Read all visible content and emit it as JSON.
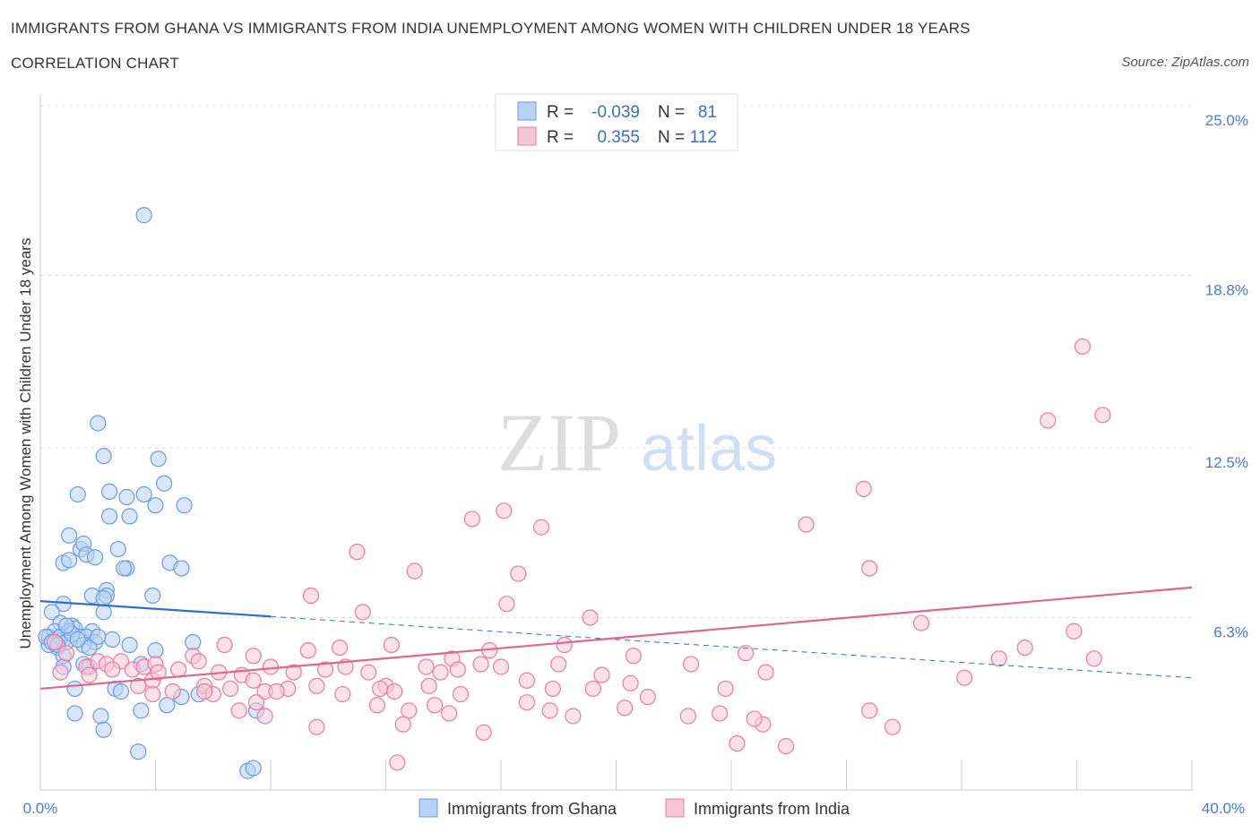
{
  "header": {
    "title": "IMMIGRANTS FROM GHANA VS IMMIGRANTS FROM INDIA UNEMPLOYMENT AMONG WOMEN WITH CHILDREN UNDER 18 YEARS",
    "subtitle": "CORRELATION CHART",
    "source": "Source: ZipAtlas.com"
  },
  "watermark": {
    "zip": "ZIP",
    "atlas": "atlas"
  },
  "colors": {
    "ghana": "#6a9be0",
    "ghana_fill": "#b9d1f3",
    "india": "#ea7ba0",
    "india_fill": "#f6c6d6",
    "ghana_line": "#2f6fce",
    "india_line": "#e0648e",
    "tick_label": "#4a7cc9"
  },
  "legend": {
    "rows": [
      {
        "r_label": "R =",
        "r_value": "-0.039",
        "n_label": "N =",
        "n_value": "81"
      },
      {
        "r_label": "R =",
        "r_value": "0.355",
        "n_label": "N =",
        "n_value": "112"
      }
    ]
  },
  "bottom_legend": {
    "ghana": "Immigrants from Ghana",
    "india": "Immigrants from India"
  },
  "chart_data": {
    "type": "scatter",
    "title": "IMMIGRANTS FROM GHANA VS IMMIGRANTS FROM INDIA UNEMPLOYMENT AMONG WOMEN WITH CHILDREN UNDER 18 YEARS",
    "xlabel": "",
    "ylabel": "Unemployment Among Women with Children Under 18 years",
    "xlim": [
      0,
      40
    ],
    "ylim": [
      0,
      25
    ],
    "x_tick_labels": {
      "min": "0.0%",
      "max": "40.0%"
    },
    "y_ticks": [
      {
        "value": 6.3,
        "label": "6.3%"
      },
      {
        "value": 12.5,
        "label": "12.5%"
      },
      {
        "value": 18.8,
        "label": "18.8%"
      },
      {
        "value": 25.0,
        "label": "25.0%"
      }
    ],
    "grid": true,
    "legend_position": "top-center",
    "series": [
      {
        "name": "Immigrants from Ghana",
        "R": -0.039,
        "N": 81,
        "trend": {
          "x0": 0,
          "y0": 6.9,
          "x1": 40,
          "y1": 4.1,
          "solid_until_x": 8
        },
        "points": [
          [
            3.6,
            21.0
          ],
          [
            2.0,
            13.4
          ],
          [
            2.2,
            12.2
          ],
          [
            4.1,
            12.1
          ],
          [
            1.3,
            10.8
          ],
          [
            2.4,
            10.9
          ],
          [
            3.0,
            10.7
          ],
          [
            3.6,
            10.8
          ],
          [
            4.3,
            11.2
          ],
          [
            4.0,
            10.4
          ],
          [
            5.0,
            10.4
          ],
          [
            2.4,
            10.0
          ],
          [
            3.1,
            10.0
          ],
          [
            1.0,
            9.3
          ],
          [
            1.4,
            8.8
          ],
          [
            1.5,
            9.0
          ],
          [
            1.6,
            8.6
          ],
          [
            1.9,
            8.5
          ],
          [
            2.7,
            8.8
          ],
          [
            0.8,
            8.3
          ],
          [
            1.0,
            8.4
          ],
          [
            3.0,
            8.1
          ],
          [
            2.9,
            8.1
          ],
          [
            4.5,
            8.3
          ],
          [
            4.9,
            8.1
          ],
          [
            2.3,
            7.3
          ],
          [
            1.8,
            7.1
          ],
          [
            2.3,
            7.1
          ],
          [
            2.2,
            7.0
          ],
          [
            3.9,
            7.1
          ],
          [
            0.8,
            6.8
          ],
          [
            0.4,
            6.5
          ],
          [
            2.2,
            6.5
          ],
          [
            0.7,
            6.1
          ],
          [
            1.1,
            6.0
          ],
          [
            1.2,
            5.9
          ],
          [
            0.3,
            5.6
          ],
          [
            0.5,
            5.5
          ],
          [
            0.8,
            5.5
          ],
          [
            1.0,
            5.8
          ],
          [
            1.4,
            5.6
          ],
          [
            1.8,
            5.8
          ],
          [
            1.6,
            5.6
          ],
          [
            1.9,
            5.4
          ],
          [
            0.5,
            5.8
          ],
          [
            0.7,
            5.6
          ],
          [
            0.9,
            5.4
          ],
          [
            0.6,
            5.2
          ],
          [
            0.3,
            5.3
          ],
          [
            1.5,
            5.3
          ],
          [
            1.7,
            5.2
          ],
          [
            2.5,
            5.5
          ],
          [
            3.1,
            5.3
          ],
          [
            4.0,
            5.1
          ],
          [
            5.3,
            5.4
          ],
          [
            0.8,
            4.9
          ],
          [
            1.5,
            4.6
          ],
          [
            0.8,
            4.5
          ],
          [
            3.5,
            4.6
          ],
          [
            1.7,
            4.5
          ],
          [
            1.2,
            3.7
          ],
          [
            2.6,
            3.7
          ],
          [
            2.8,
            3.6
          ],
          [
            5.5,
            3.5
          ],
          [
            4.9,
            3.4
          ],
          [
            1.2,
            2.8
          ],
          [
            2.1,
            2.7
          ],
          [
            3.5,
            2.9
          ],
          [
            4.4,
            3.1
          ],
          [
            7.5,
            2.9
          ],
          [
            2.2,
            2.2
          ],
          [
            3.4,
            1.4
          ],
          [
            7.2,
            0.7
          ],
          [
            7.4,
            0.8
          ],
          [
            0.2,
            5.6
          ],
          [
            0.4,
            5.4
          ],
          [
            1.1,
            5.7
          ],
          [
            0.6,
            5.3
          ],
          [
            1.3,
            5.5
          ],
          [
            2.0,
            5.6
          ],
          [
            0.9,
            6.0
          ]
        ]
      },
      {
        "name": "Immigrants from India",
        "R": 0.355,
        "N": 112,
        "trend": {
          "x0": 0,
          "y0": 3.7,
          "x1": 40,
          "y1": 7.4
        },
        "points": [
          [
            36.2,
            16.2
          ],
          [
            35.0,
            13.5
          ],
          [
            36.9,
            13.7
          ],
          [
            28.6,
            11.0
          ],
          [
            15.0,
            9.9
          ],
          [
            16.1,
            10.2
          ],
          [
            17.4,
            9.6
          ],
          [
            26.6,
            9.7
          ],
          [
            11.0,
            8.7
          ],
          [
            13.0,
            8.0
          ],
          [
            16.6,
            7.9
          ],
          [
            28.8,
            8.1
          ],
          [
            9.4,
            7.1
          ],
          [
            11.2,
            6.5
          ],
          [
            16.2,
            6.8
          ],
          [
            19.1,
            6.3
          ],
          [
            30.6,
            6.1
          ],
          [
            35.9,
            5.8
          ],
          [
            34.2,
            5.2
          ],
          [
            6.4,
            5.3
          ],
          [
            7.4,
            4.9
          ],
          [
            9.3,
            5.1
          ],
          [
            10.4,
            5.2
          ],
          [
            12.2,
            5.3
          ],
          [
            14.3,
            4.8
          ],
          [
            15.6,
            5.1
          ],
          [
            18.2,
            5.3
          ],
          [
            20.6,
            4.9
          ],
          [
            24.5,
            5.0
          ],
          [
            36.6,
            4.8
          ],
          [
            33.3,
            4.8
          ],
          [
            0.5,
            5.4
          ],
          [
            0.9,
            5.0
          ],
          [
            1.6,
            4.5
          ],
          [
            2.0,
            4.7
          ],
          [
            2.3,
            4.6
          ],
          [
            2.8,
            4.7
          ],
          [
            3.2,
            4.4
          ],
          [
            3.6,
            4.5
          ],
          [
            4.0,
            4.6
          ],
          [
            4.8,
            4.4
          ],
          [
            5.3,
            4.9
          ],
          [
            5.5,
            4.7
          ],
          [
            6.2,
            4.3
          ],
          [
            7.0,
            4.2
          ],
          [
            7.4,
            4.0
          ],
          [
            8.0,
            4.5
          ],
          [
            8.8,
            4.3
          ],
          [
            9.9,
            4.4
          ],
          [
            10.6,
            4.5
          ],
          [
            11.4,
            4.3
          ],
          [
            12.0,
            3.8
          ],
          [
            13.4,
            4.5
          ],
          [
            13.9,
            4.3
          ],
          [
            14.5,
            4.4
          ],
          [
            15.3,
            4.6
          ],
          [
            16.0,
            4.5
          ],
          [
            16.9,
            4.0
          ],
          [
            18.0,
            4.6
          ],
          [
            19.5,
            4.2
          ],
          [
            22.6,
            4.6
          ],
          [
            25.2,
            4.3
          ],
          [
            3.4,
            3.8
          ],
          [
            3.9,
            4.0
          ],
          [
            5.7,
            3.8
          ],
          [
            6.6,
            3.7
          ],
          [
            7.8,
            3.6
          ],
          [
            8.6,
            3.7
          ],
          [
            9.6,
            3.8
          ],
          [
            10.5,
            3.5
          ],
          [
            11.8,
            3.7
          ],
          [
            12.3,
            3.6
          ],
          [
            13.5,
            3.8
          ],
          [
            14.6,
            3.5
          ],
          [
            17.8,
            3.7
          ],
          [
            19.2,
            3.7
          ],
          [
            20.5,
            3.9
          ],
          [
            21.1,
            3.4
          ],
          [
            23.8,
            3.7
          ],
          [
            32.1,
            4.1
          ],
          [
            0.7,
            4.3
          ],
          [
            1.7,
            4.2
          ],
          [
            2.5,
            4.4
          ],
          [
            4.1,
            4.3
          ],
          [
            4.6,
            3.6
          ],
          [
            6.0,
            3.5
          ],
          [
            6.9,
            2.9
          ],
          [
            7.8,
            2.7
          ],
          [
            7.5,
            3.2
          ],
          [
            11.7,
            3.1
          ],
          [
            12.8,
            2.9
          ],
          [
            13.7,
            3.1
          ],
          [
            14.2,
            2.8
          ],
          [
            16.9,
            3.2
          ],
          [
            17.7,
            2.9
          ],
          [
            18.5,
            2.7
          ],
          [
            20.3,
            3.0
          ],
          [
            22.5,
            2.7
          ],
          [
            23.6,
            2.8
          ],
          [
            28.8,
            2.9
          ],
          [
            9.6,
            2.3
          ],
          [
            12.6,
            2.4
          ],
          [
            15.4,
            2.1
          ],
          [
            24.2,
            1.7
          ],
          [
            25.1,
            2.4
          ],
          [
            24.8,
            2.6
          ],
          [
            25.9,
            1.6
          ],
          [
            29.6,
            2.3
          ],
          [
            12.4,
            1.0
          ],
          [
            5.7,
            3.6
          ],
          [
            3.9,
            3.5
          ],
          [
            8.2,
            3.6
          ]
        ]
      }
    ]
  }
}
